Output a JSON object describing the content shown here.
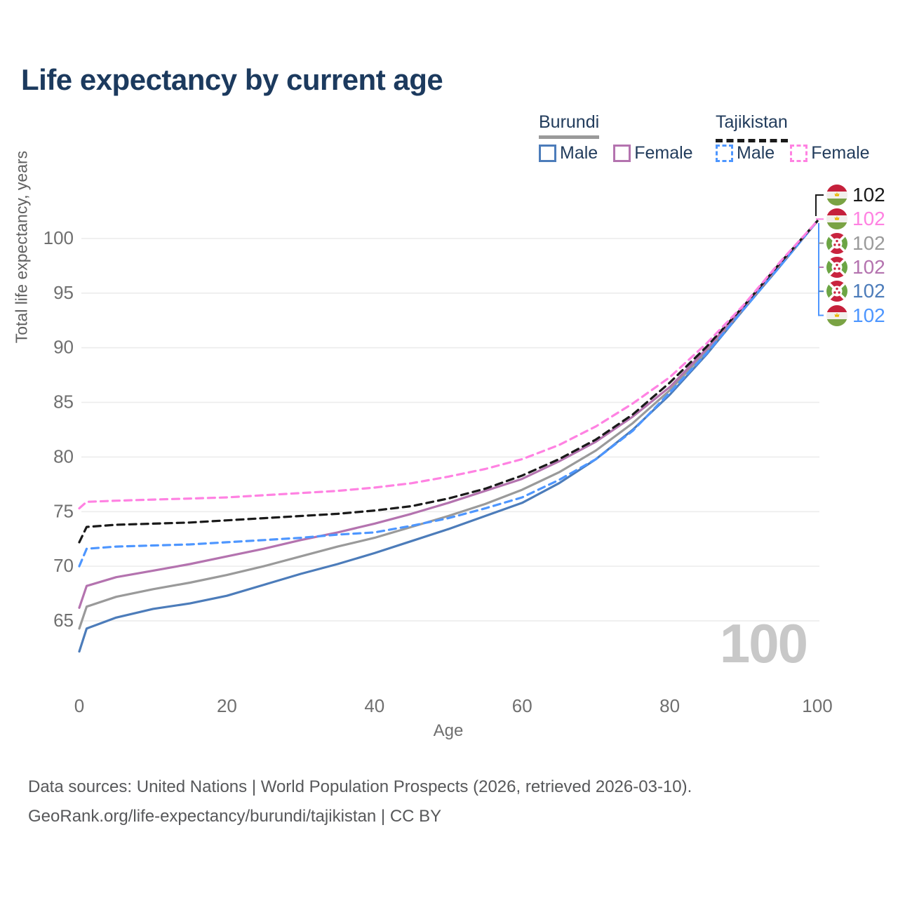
{
  "title": "Life expectancy by current age",
  "age_counter_watermark": "100",
  "footer": {
    "line1": "Data sources: United Nations | World Population Prospects (2026, retrieved 2026-03-10).",
    "line2": "GeoRank.org/life-expectancy/burundi/tajikistan | CC BY"
  },
  "colors": {
    "title_text": "#1c3a5e",
    "tick_text": "#6f6f6f",
    "gridline": "#ececec",
    "watermark": "#c8c8c8",
    "burundi_male": "#4c7cba",
    "burundi_total": "#9a9a9a",
    "burundi_female": "#b473af",
    "tajikistan_male": "#4d96ff",
    "tajikistan_total": "#1a1a1a",
    "tajikistan_female": "#ff82e2"
  },
  "legend": {
    "groups": [
      {
        "name": "Burundi",
        "line_style": "solid",
        "underline_color": "#9a9a9a",
        "items": [
          {
            "label": "Male",
            "color": "#4c7cba"
          },
          {
            "label": "Female",
            "color": "#b473af"
          }
        ]
      },
      {
        "name": "Tajikistan",
        "line_style": "dashed",
        "underline_color": "#1a1a1a",
        "items": [
          {
            "label": "Male",
            "color": "#4d96ff"
          },
          {
            "label": "Female",
            "color": "#ff82e2"
          }
        ]
      }
    ]
  },
  "end_labels": [
    {
      "country": "Tajikistan",
      "flag": "tj",
      "value": "102",
      "color": "#1a1a1a"
    },
    {
      "country": "Tajikistan",
      "flag": "tj",
      "value": "102",
      "color": "#ff82e2"
    },
    {
      "country": "Burundi",
      "flag": "bi",
      "value": "102",
      "color": "#9a9a9a"
    },
    {
      "country": "Burundi",
      "flag": "bi",
      "value": "102",
      "color": "#b473af"
    },
    {
      "country": "Burundi",
      "flag": "bi",
      "value": "102",
      "color": "#4c7cba"
    },
    {
      "country": "Tajikistan",
      "flag": "tj",
      "value": "102",
      "color": "#4d96ff"
    }
  ],
  "chart_data": {
    "type": "line",
    "title": "Life expectancy by current age",
    "xlabel": "Age",
    "ylabel": "Total life expectancy, years",
    "xlim": [
      0,
      100
    ],
    "ylim": [
      61,
      103
    ],
    "xticks": [
      0,
      20,
      40,
      60,
      80,
      100
    ],
    "yticks": [
      65,
      70,
      75,
      80,
      85,
      90,
      95,
      100
    ],
    "grid": "horizontal",
    "legend_position": "top-right",
    "x": [
      0,
      1,
      5,
      10,
      15,
      20,
      25,
      30,
      35,
      40,
      45,
      50,
      55,
      60,
      65,
      70,
      75,
      80,
      85,
      90,
      95,
      100
    ],
    "series": [
      {
        "name": "Burundi Male",
        "color": "#4c7cba",
        "dash": "solid",
        "values": [
          62.2,
          64.3,
          65.3,
          66.1,
          66.6,
          67.3,
          68.3,
          69.3,
          70.2,
          71.2,
          72.3,
          73.4,
          74.6,
          75.8,
          77.6,
          79.8,
          82.5,
          85.7,
          89.4,
          93.5,
          97.5,
          101.6
        ]
      },
      {
        "name": "Burundi Total",
        "color": "#9a9a9a",
        "dash": "solid",
        "values": [
          64.3,
          66.3,
          67.2,
          67.9,
          68.5,
          69.2,
          70.0,
          70.9,
          71.8,
          72.6,
          73.6,
          74.6,
          75.7,
          77.0,
          78.6,
          80.6,
          83.1,
          86.1,
          89.7,
          93.6,
          97.6,
          101.6
        ]
      },
      {
        "name": "Burundi Female",
        "color": "#b473af",
        "dash": "solid",
        "values": [
          66.2,
          68.2,
          69.0,
          69.6,
          70.2,
          70.9,
          71.6,
          72.4,
          73.1,
          73.9,
          74.8,
          75.8,
          76.9,
          78.0,
          79.6,
          81.4,
          83.7,
          86.4,
          89.9,
          93.7,
          97.7,
          101.6
        ]
      },
      {
        "name": "Tajikistan Male",
        "color": "#4d96ff",
        "dash": "dashed",
        "values": [
          70.0,
          71.6,
          71.8,
          71.9,
          72.0,
          72.2,
          72.4,
          72.6,
          72.9,
          73.1,
          73.7,
          74.4,
          75.3,
          76.3,
          77.9,
          79.8,
          82.4,
          85.9,
          89.5,
          93.5,
          97.5,
          101.6
        ]
      },
      {
        "name": "Tajikistan Total",
        "color": "#1a1a1a",
        "dash": "dashed",
        "values": [
          72.2,
          73.6,
          73.8,
          73.9,
          74.0,
          74.2,
          74.4,
          74.6,
          74.8,
          75.1,
          75.5,
          76.2,
          77.1,
          78.3,
          79.8,
          81.6,
          83.9,
          86.8,
          90.1,
          93.8,
          97.8,
          101.6
        ]
      },
      {
        "name": "Tajikistan Female",
        "color": "#ff82e2",
        "dash": "dashed",
        "values": [
          75.3,
          75.9,
          76.0,
          76.1,
          76.2,
          76.3,
          76.5,
          76.7,
          76.9,
          77.2,
          77.6,
          78.2,
          78.9,
          79.8,
          81.1,
          82.8,
          84.9,
          87.3,
          90.4,
          93.9,
          97.9,
          101.6
        ]
      }
    ],
    "end_annotation_value": 102
  }
}
